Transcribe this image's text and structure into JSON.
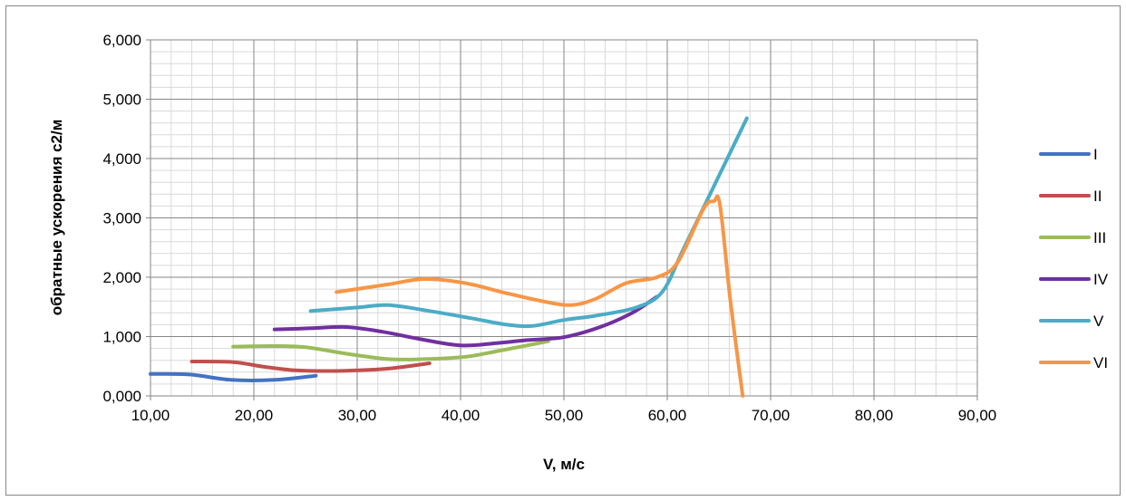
{
  "chart_data": {
    "type": "line",
    "title": "",
    "xlabel": "V, м/с",
    "ylabel": "обратные ускорения с2/м",
    "xlim": [
      10,
      90
    ],
    "ylim": [
      0,
      6
    ],
    "x_ticks": [
      "10,00",
      "20,00",
      "30,00",
      "40,00",
      "50,00",
      "60,00",
      "70,00",
      "80,00",
      "90,00"
    ],
    "y_ticks": [
      "0,000",
      "1,000",
      "2,000",
      "3,000",
      "4,000",
      "5,000",
      "6,000"
    ],
    "grid": true,
    "legend_position": "right",
    "series": [
      {
        "name": "I",
        "color": "#4472C4",
        "x": [
          10,
          13.8,
          17.8,
          22,
          26
        ],
        "y": [
          0.37,
          0.36,
          0.27,
          0.27,
          0.34
        ]
      },
      {
        "name": "II",
        "color": "#C0504D",
        "x": [
          14,
          18,
          21,
          24,
          27,
          30,
          33,
          37
        ],
        "y": [
          0.58,
          0.57,
          0.49,
          0.43,
          0.42,
          0.43,
          0.46,
          0.55
        ]
      },
      {
        "name": "III",
        "color": "#9BBB59",
        "x": [
          18,
          21.8,
          25,
          29,
          33,
          36.5,
          40.5,
          44,
          48.5
        ],
        "y": [
          0.83,
          0.84,
          0.82,
          0.71,
          0.62,
          0.62,
          0.66,
          0.77,
          0.92
        ]
      },
      {
        "name": "IV",
        "color": "#7030A0",
        "x": [
          22,
          25.5,
          29,
          32.5,
          36,
          40,
          43.5,
          46.5,
          50,
          53.5,
          56.5,
          59
        ],
        "y": [
          1.12,
          1.14,
          1.16,
          1.08,
          0.96,
          0.85,
          0.89,
          0.94,
          0.99,
          1.16,
          1.39,
          1.67
        ]
      },
      {
        "name": "V",
        "color": "#4BACC6",
        "x": [
          25.5,
          30,
          33,
          37,
          41,
          44.5,
          47,
          50,
          53,
          57,
          59.5,
          61.5,
          64,
          67.7
        ],
        "y": [
          1.43,
          1.49,
          1.53,
          1.43,
          1.31,
          1.2,
          1.18,
          1.28,
          1.35,
          1.49,
          1.75,
          2.45,
          3.35,
          4.68
        ]
      },
      {
        "name": "VI",
        "color": "#F79646",
        "x": [
          28,
          33,
          36.5,
          40.5,
          44,
          47.5,
          50.5,
          53,
          56,
          59,
          61,
          63.5,
          64.5,
          65.1,
          66.1,
          67.3
        ],
        "y": [
          1.75,
          1.88,
          1.97,
          1.9,
          1.75,
          1.61,
          1.53,
          1.63,
          1.9,
          2.0,
          2.25,
          3.15,
          3.28,
          3.22,
          1.62,
          0.0
        ]
      }
    ]
  }
}
